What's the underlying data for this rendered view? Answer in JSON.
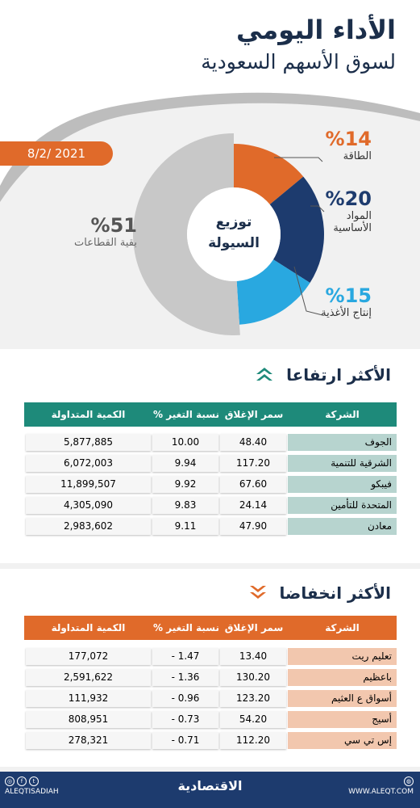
{
  "header": {
    "title_line1": "الأداء اليومي",
    "title_line2": "لسوق الأسهم السعودية",
    "date": "8/2/ 2021"
  },
  "liquidity": {
    "center_label_1": "توزيع",
    "center_label_2": "السيولة",
    "segments": [
      {
        "pct_label": "%14",
        "name": "الطاقة",
        "value": 14,
        "color": "#e06a2a"
      },
      {
        "pct_label": "%20",
        "name_1": "المواد",
        "name_2": "الأساسية",
        "value": 20,
        "color": "#1d3b6e"
      },
      {
        "pct_label": "%15",
        "name": "إنتاج الأغذية",
        "value": 15,
        "color": "#29a8e0"
      },
      {
        "pct_label": "%51",
        "name": "بقية القطاعات",
        "value": 51,
        "color": "#c8c8c8"
      }
    ]
  },
  "gainers": {
    "title": "الأكثر ارتفاعا",
    "columns": [
      "الشركة",
      "سمر الإغلاق",
      "نسبة التغير %",
      "الكمية المتداولة"
    ],
    "rows": [
      [
        "الجوف",
        "48.40",
        "10.00",
        "5,877,885"
      ],
      [
        "الشرقية للتنمية",
        "117.20",
        "9.94",
        "6,072,003"
      ],
      [
        "فيبكو",
        "67.60",
        "9.92",
        "11,899,507"
      ],
      [
        "المتحدة للتأمين",
        "24.14",
        "9.83",
        "4,305,090"
      ],
      [
        "معادن",
        "47.90",
        "9.11",
        "2,983,602"
      ]
    ]
  },
  "losers": {
    "title": "الأكثر انخفاضا",
    "columns": [
      "الشركة",
      "سمر الإغلاق",
      "نسبة التغير %",
      "الكمية المتداولة"
    ],
    "rows": [
      [
        "تعليم ريت",
        "13.40",
        "1.47 -",
        "177,072"
      ],
      [
        "باعظيم",
        "130.20",
        "1.36 -",
        "2,591,622"
      ],
      [
        "أسواق ع العثيم",
        "123.20",
        "0.96 -",
        "111,932"
      ],
      [
        "أسيج",
        "54.20",
        "0.73 -",
        "808,951"
      ],
      [
        "إس تي سي",
        "112.20",
        "0.71 -",
        "278,321"
      ]
    ]
  },
  "colors": {
    "gain_header": "#1e8a7a",
    "gain_name": "#b7d4cf",
    "loss_header": "#e06a2a",
    "loss_name": "#f2c7ae",
    "navy": "#1d3b6e"
  },
  "footer": {
    "handle": "ALEQTISADIAH",
    "logo": "الاقتصادية",
    "site": "WWW.ALEQT.COM"
  }
}
